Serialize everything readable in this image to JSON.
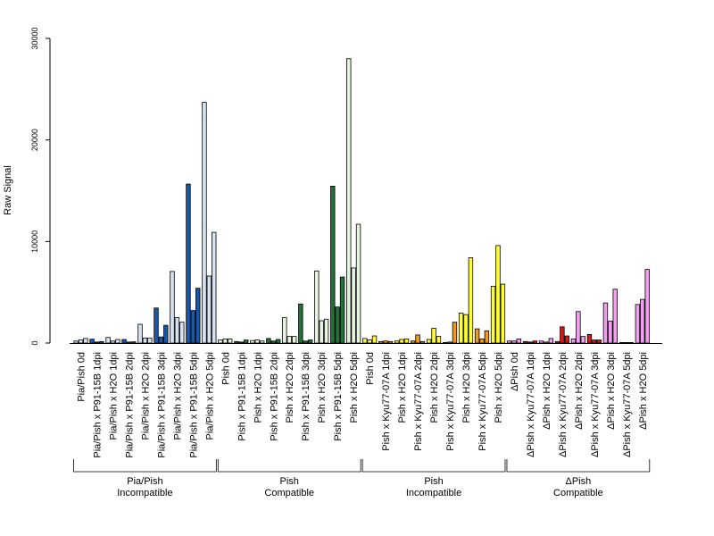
{
  "chart_data": {
    "type": "bar",
    "title": "",
    "xlabel": "",
    "ylabel": "Raw Signal",
    "ylim": [
      0,
      30000
    ],
    "yticks": [
      0,
      10000,
      20000,
      30000
    ],
    "grid": false,
    "bars_per_category": 3,
    "categories": [
      {
        "label": "Pia/Pish 0d",
        "color": "#d6e2f0",
        "values": [
          200,
          300,
          450
        ]
      },
      {
        "label": "Pia/Pish x P91-15B 1dpi",
        "color": "#1c57a5",
        "values": [
          380,
          100,
          150
        ]
      },
      {
        "label": "Pia/Pish x H2O 1dpi",
        "color": "#d6e2f0",
        "values": [
          550,
          200,
          350
        ]
      },
      {
        "label": "Pia/Pish x P91-15B 2dpi",
        "color": "#1c57a5",
        "values": [
          350,
          100,
          120
        ]
      },
      {
        "label": "Pia/Pish x H2O 2dpi",
        "color": "#d6e2f0",
        "values": [
          1850,
          500,
          500
        ]
      },
      {
        "label": "Pia/Pish x P91-15B 3dpi",
        "color": "#1c57a5",
        "values": [
          3450,
          600,
          1750
        ]
      },
      {
        "label": "Pia/Pish x H2O 3dpi",
        "color": "#d6e2f0",
        "values": [
          7050,
          2500,
          2050
        ]
      },
      {
        "label": "Pia/Pish x P91-15B 5dpi",
        "color": "#1c57a5",
        "values": [
          15650,
          3200,
          5400
        ]
      },
      {
        "label": "Pia/Pish x H2O 5dpi",
        "color": "#d6e2f0",
        "values": [
          23700,
          6600,
          10900
        ]
      },
      {
        "label": "Pish 0d",
        "color": "#e5f3df",
        "values": [
          300,
          400,
          400
        ]
      },
      {
        "label": "Pish x P91-15B 1dpi",
        "color": "#25713a",
        "values": [
          150,
          100,
          300
        ]
      },
      {
        "label": "Pish x H2O 1dpi",
        "color": "#e5f3df",
        "values": [
          250,
          300,
          200
        ]
      },
      {
        "label": "Pish x P91-15B 2dpi",
        "color": "#25713a",
        "values": [
          450,
          200,
          350
        ]
      },
      {
        "label": "Pish x H2O 2dpi",
        "color": "#e5f3df",
        "values": [
          2500,
          650,
          650
        ]
      },
      {
        "label": "Pish x P91-15B 3dpi",
        "color": "#25713a",
        "values": [
          3850,
          200,
          300
        ]
      },
      {
        "label": "Pish x H2O 3dpi",
        "color": "#e5f3df",
        "values": [
          7100,
          2200,
          2350
        ]
      },
      {
        "label": "Pish x P91-15B 5dpi",
        "color": "#25713a",
        "values": [
          15450,
          3550,
          6500
        ]
      },
      {
        "label": "Pish x H2O 5dpi",
        "color": "#e5f3df",
        "values": [
          28000,
          7400,
          11700
        ]
      },
      {
        "label": "Pish 0d",
        "color": "#ffff33",
        "values": [
          450,
          300,
          700
        ]
      },
      {
        "label": "Pish x Kyu77-07A 1dpi",
        "color": "#ee9a1a",
        "values": [
          150,
          200,
          150
        ]
      },
      {
        "label": "Pish x H2O 1dpi",
        "color": "#ffff33",
        "values": [
          200,
          350,
          400
        ]
      },
      {
        "label": "Pish x Kyu77-07A 2dpi",
        "color": "#ee9a1a",
        "values": [
          200,
          800,
          150
        ]
      },
      {
        "label": "Pish x H2O 2dpi",
        "color": "#ffff33",
        "values": [
          350,
          1450,
          650
        ]
      },
      {
        "label": "Pish x Kyu77-07A 3dpi",
        "color": "#ee9a1a",
        "values": [
          50,
          100,
          2050
        ]
      },
      {
        "label": "Pish x H2O 3dpi",
        "color": "#ffff33",
        "values": [
          2950,
          2800,
          8400
        ]
      },
      {
        "label": "Pish x Kyu77-07A 5dpi",
        "color": "#ee9a1a",
        "values": [
          1400,
          400,
          1200
        ]
      },
      {
        "label": "Pish x H2O 5dpi",
        "color": "#ffff33",
        "values": [
          5600,
          9600,
          5800
        ]
      },
      {
        "label": "ΔPish 0d",
        "color": "#f0a0ee",
        "values": [
          200,
          200,
          400
        ]
      },
      {
        "label": "ΔPish x Kyu77-07A 1dpi",
        "color": "#cc1a1a",
        "values": [
          150,
          100,
          200
        ]
      },
      {
        "label": "ΔPish x H2O 1dpi",
        "color": "#f0a0ee",
        "values": [
          200,
          100,
          450
        ]
      },
      {
        "label": "ΔPish x Kyu77-07A 2dpi",
        "color": "#cc1a1a",
        "values": [
          150,
          1600,
          700
        ]
      },
      {
        "label": "ΔPish x H2O 2dpi",
        "color": "#f0a0ee",
        "values": [
          400,
          3100,
          650
        ]
      },
      {
        "label": "ΔPish x Kyu77-07A 3dpi",
        "color": "#cc1a1a",
        "values": [
          850,
          300,
          300
        ]
      },
      {
        "label": "ΔPish x H2O 3dpi",
        "color": "#f0a0ee",
        "values": [
          3950,
          2150,
          5300
        ]
      },
      {
        "label": "ΔPish x Kyu77-07A 5dpi",
        "color": "#cc1a1a",
        "values": [
          50,
          50,
          50
        ]
      },
      {
        "label": "ΔPish x H2O 5dpi",
        "color": "#f0a0ee",
        "values": [
          3800,
          4300,
          7250
        ]
      }
    ],
    "groups": [
      {
        "line1": "Pia/Pish",
        "line2": "Incompatible",
        "start": 0,
        "end": 8
      },
      {
        "line1": "Pish",
        "line2": "Compatible",
        "start": 9,
        "end": 17
      },
      {
        "line1": "Pish",
        "line2": "Incompatible",
        "start": 18,
        "end": 26
      },
      {
        "line1": "ΔPish",
        "line2": "Compatible",
        "start": 27,
        "end": 35
      }
    ]
  }
}
